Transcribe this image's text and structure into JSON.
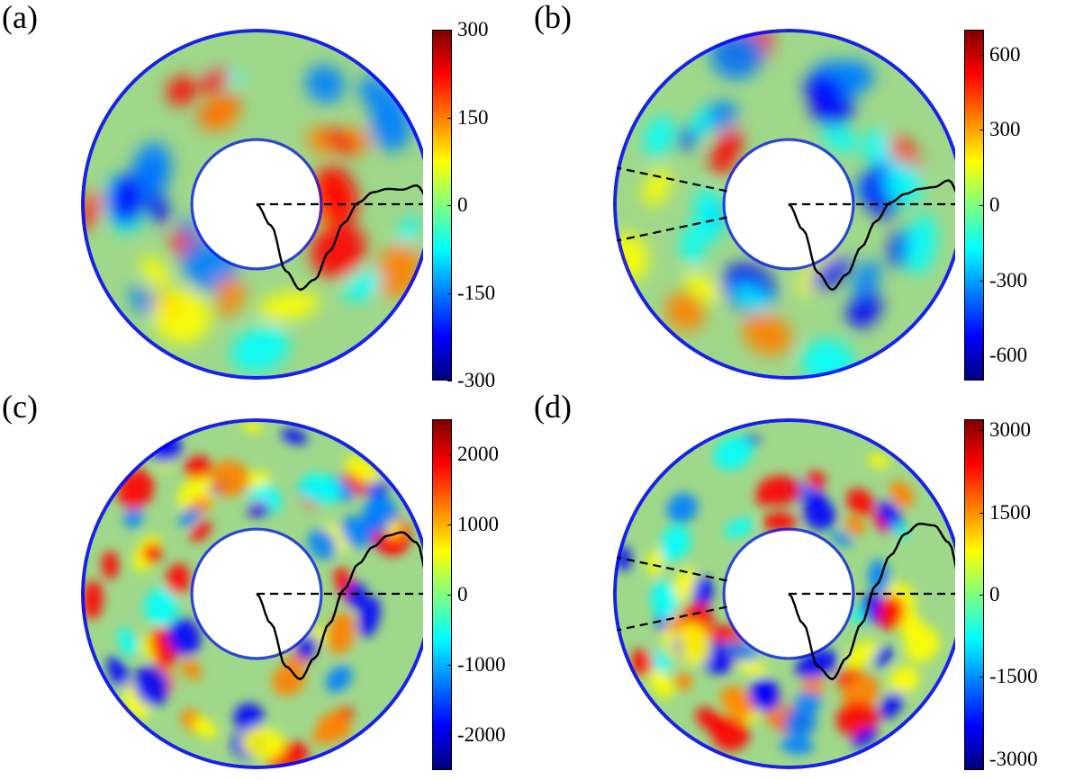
{
  "chart_data": [
    {
      "type": "heatmap",
      "panel_label": "(a)",
      "colorbar": {
        "ticks": [
          300,
          150,
          0,
          -150,
          -300
        ],
        "tick_labels": [
          "300",
          "150",
          "0",
          "-150",
          "-300"
        ],
        "range": [
          -300,
          300
        ]
      },
      "sector_lines": false,
      "profile": [
        0,
        -0.25,
        -0.78,
        -1.0,
        -0.88,
        -0.55,
        -0.22,
        0.02,
        0.14,
        0.18,
        0.17,
        0.22,
        0.0
      ]
    },
    {
      "type": "heatmap",
      "panel_label": "(b)",
      "colorbar": {
        "ticks": [
          600,
          300,
          0,
          -300,
          -600
        ],
        "tick_labels": [
          "600",
          "300",
          "0",
          "-300",
          "-600"
        ],
        "range": [
          -700,
          700
        ]
      },
      "sector_lines": true,
      "profile": [
        0,
        -0.3,
        -0.8,
        -1.0,
        -0.82,
        -0.5,
        -0.2,
        0.02,
        0.12,
        0.18,
        0.2,
        0.28,
        0.0
      ]
    },
    {
      "type": "heatmap",
      "panel_label": "(c)",
      "colorbar": {
        "ticks": [
          2000,
          1000,
          0,
          -1000,
          -2000
        ],
        "tick_labels": [
          "2000",
          "1000",
          "0",
          "-1000",
          "-2000"
        ],
        "range": [
          -2500,
          2500
        ]
      },
      "sector_lines": false,
      "profile": [
        0,
        -0.35,
        -0.85,
        -1.0,
        -0.75,
        -0.35,
        0.05,
        0.35,
        0.55,
        0.68,
        0.72,
        0.6,
        0.0
      ]
    },
    {
      "type": "heatmap",
      "panel_label": "(d)",
      "colorbar": {
        "ticks": [
          3000,
          1500,
          0,
          -1500,
          -3000
        ],
        "tick_labels": [
          "3000",
          "1500",
          "0",
          "-1500",
          "-3000"
        ],
        "range": [
          -3200,
          3200
        ]
      },
      "sector_lines": true,
      "profile": [
        0,
        -0.35,
        -0.85,
        -1.0,
        -0.75,
        -0.35,
        0.1,
        0.45,
        0.7,
        0.82,
        0.8,
        0.6,
        0.0
      ]
    }
  ],
  "colors": {
    "jet": [
      "#00007f",
      "#0000ff",
      "#007fff",
      "#00ffff",
      "#7fff7f",
      "#ffff00",
      "#ff7f00",
      "#ff0000",
      "#7f0000"
    ],
    "field_base": "#9fd88a",
    "line": "#000000"
  }
}
